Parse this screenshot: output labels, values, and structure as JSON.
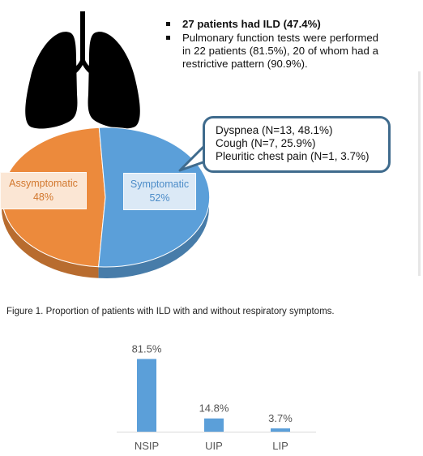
{
  "bullets": [
    "27 patients had ILD (47.4%)",
    "Pulmonary function tests were performed in 22 patients (81.5%), 20 of whom had a restrictive pattern (90.9%)."
  ],
  "callout": {
    "lines": [
      "Dyspnea (N=13, 48.1%)",
      "Cough (N=7, 25.9%)",
      "Pleuritic chest pain (N=1, 3.7%)"
    ],
    "border_color": "#3f6b8d"
  },
  "icon": "lungs-icon",
  "caption": "Figure 1. Proportion of patients with ILD with and without respiratory symptoms.",
  "chart_data": [
    {
      "type": "pie",
      "categories": [
        "Assymptomatic",
        "Symptomatic"
      ],
      "values": [
        48,
        52
      ],
      "labels": [
        {
          "name": "Assymptomatic",
          "value": "48%"
        },
        {
          "name": "Symptomatic",
          "value": "52%"
        }
      ],
      "colors": [
        "#ec8a3c",
        "#5b9fd9"
      ]
    },
    {
      "type": "bar",
      "categories": [
        "NSIP",
        "UIP",
        "LIP"
      ],
      "values": [
        81.5,
        14.8,
        3.7
      ],
      "data_labels": [
        "81.5%",
        "14.8%",
        "3.7%"
      ],
      "color": "#5b9fd9",
      "ylim": [
        0,
        100
      ]
    }
  ]
}
